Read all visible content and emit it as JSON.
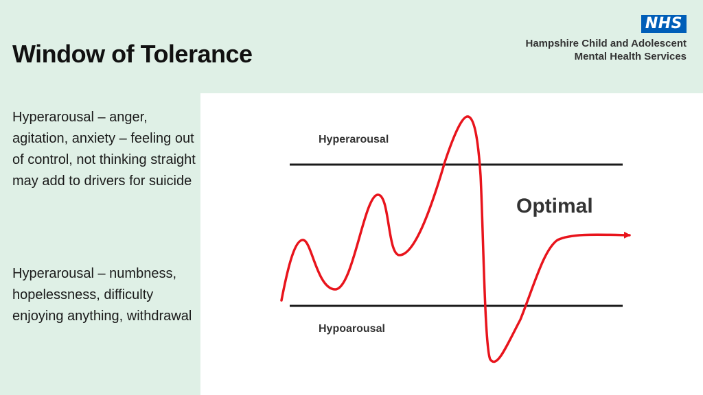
{
  "slide": {
    "title": "Window of Tolerance"
  },
  "logo": {
    "badge": "NHS",
    "org_line_1": "Hampshire Child and Adolescent",
    "org_line_2": "Mental Health Services",
    "badge_color": "#005eb8"
  },
  "side_text": {
    "paragraph_1": "Hyperarousal – anger, agitation, anxiety – feeling out of control, not thinking straight may add to drivers for suicide",
    "paragraph_2": "Hyperarousal – numbness, hopelessness, difficulty enjoying anything, withdrawal"
  },
  "diagram": {
    "label_top": "Hyperarousal",
    "label_middle": "Optimal",
    "label_bottom": "Hypoarousal",
    "curve_color": "#e8141c",
    "line_color": "#1a1a1a"
  },
  "colors": {
    "background": "#dff0e6",
    "panel": "#ffffff"
  }
}
